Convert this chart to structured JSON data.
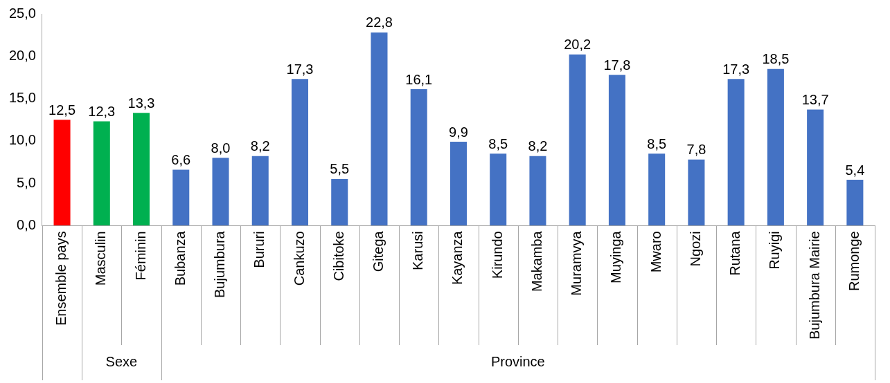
{
  "chart_data": {
    "type": "bar",
    "categories": [
      "Ensemble pays",
      "Masculin",
      "Féminin",
      "Bubanza",
      "Bujumbura",
      "Bururi",
      "Cankuzo",
      "Cibitoke",
      "Gitega",
      "Karusi",
      "Kayanza",
      "Kirundo",
      "Makamba",
      "Muramvya",
      "Muyinga",
      "Mwaro",
      "Ngozi",
      "Rutana",
      "Ruyigi",
      "Bujumbura Mairie",
      "Rumonge"
    ],
    "values": [
      12.5,
      12.3,
      13.3,
      6.6,
      8.0,
      8.2,
      17.3,
      5.5,
      22.8,
      16.1,
      9.9,
      8.5,
      8.2,
      20.2,
      17.8,
      8.5,
      7.8,
      17.3,
      18.5,
      13.7,
      5.4
    ],
    "value_labels": [
      "12,5",
      "12,3",
      "13,3",
      "6,6",
      "8,0",
      "8,2",
      "17,3",
      "5,5",
      "22,8",
      "16,1",
      "9,9",
      "8,5",
      "8,2",
      "20,2",
      "17,8",
      "8,5",
      "7,8",
      "17,3",
      "18,5",
      "13,7",
      "5,4"
    ],
    "colors": [
      "#ff0000",
      "#00b050",
      "#00b050",
      "#4472c4",
      "#4472c4",
      "#4472c4",
      "#4472c4",
      "#4472c4",
      "#4472c4",
      "#4472c4",
      "#4472c4",
      "#4472c4",
      "#4472c4",
      "#4472c4",
      "#4472c4",
      "#4472c4",
      "#4472c4",
      "#4472c4",
      "#4472c4",
      "#4472c4",
      "#4472c4"
    ],
    "ylim": [
      0,
      25
    ],
    "yticks": [
      {
        "value": 0,
        "label": "0,0"
      },
      {
        "value": 5,
        "label": "5,0"
      },
      {
        "value": 10,
        "label": "10,0"
      },
      {
        "value": 15,
        "label": "15,0"
      },
      {
        "value": 20,
        "label": "20,0"
      },
      {
        "value": 25,
        "label": "25,0"
      }
    ],
    "annotations": [
      "Sexe",
      "Province"
    ],
    "grid": false,
    "legend": false
  }
}
